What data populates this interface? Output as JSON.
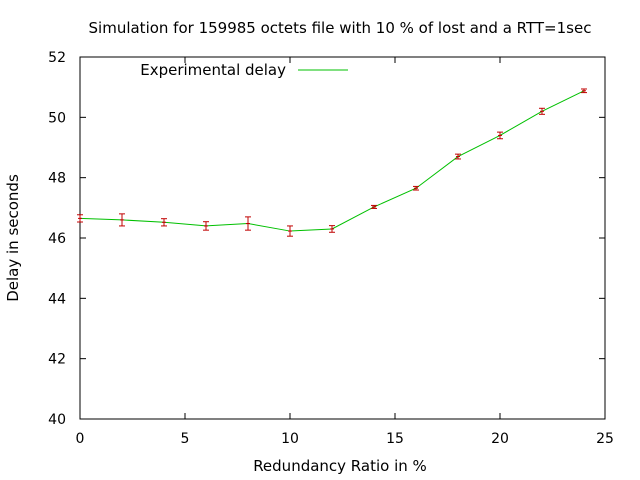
{
  "chart_data": {
    "type": "line",
    "title": "Simulation for 159985 octets file with 10 % of lost and a RTT=1sec",
    "xlabel": "Redundancy Ratio in %",
    "ylabel": "Delay in seconds",
    "xlim": [
      0,
      25
    ],
    "ylim": [
      40,
      52
    ],
    "xticks": [
      "0",
      "5",
      "10",
      "15",
      "20",
      "25"
    ],
    "yticks": [
      "40",
      "42",
      "44",
      "46",
      "48",
      "50",
      "52"
    ],
    "grid": false,
    "legend_position": "top-left",
    "series": [
      {
        "name": "Experimental delay",
        "color": "#00c000",
        "errorbar_color": "#c00000",
        "points": [
          {
            "x": 0,
            "y": 46.65,
            "err": 0.12
          },
          {
            "x": 2,
            "y": 46.6,
            "err": 0.2
          },
          {
            "x": 4,
            "y": 46.52,
            "err": 0.12
          },
          {
            "x": 6,
            "y": 46.4,
            "err": 0.14
          },
          {
            "x": 8,
            "y": 46.48,
            "err": 0.22
          },
          {
            "x": 10,
            "y": 46.23,
            "err": 0.17
          },
          {
            "x": 12,
            "y": 46.3,
            "err": 0.11
          },
          {
            "x": 14,
            "y": 47.03,
            "err": 0.05
          },
          {
            "x": 16,
            "y": 47.65,
            "err": 0.06
          },
          {
            "x": 18,
            "y": 48.7,
            "err": 0.08
          },
          {
            "x": 20,
            "y": 49.4,
            "err": 0.11
          },
          {
            "x": 22,
            "y": 50.2,
            "err": 0.1
          },
          {
            "x": 24,
            "y": 50.88,
            "err": 0.06
          }
        ]
      }
    ]
  }
}
